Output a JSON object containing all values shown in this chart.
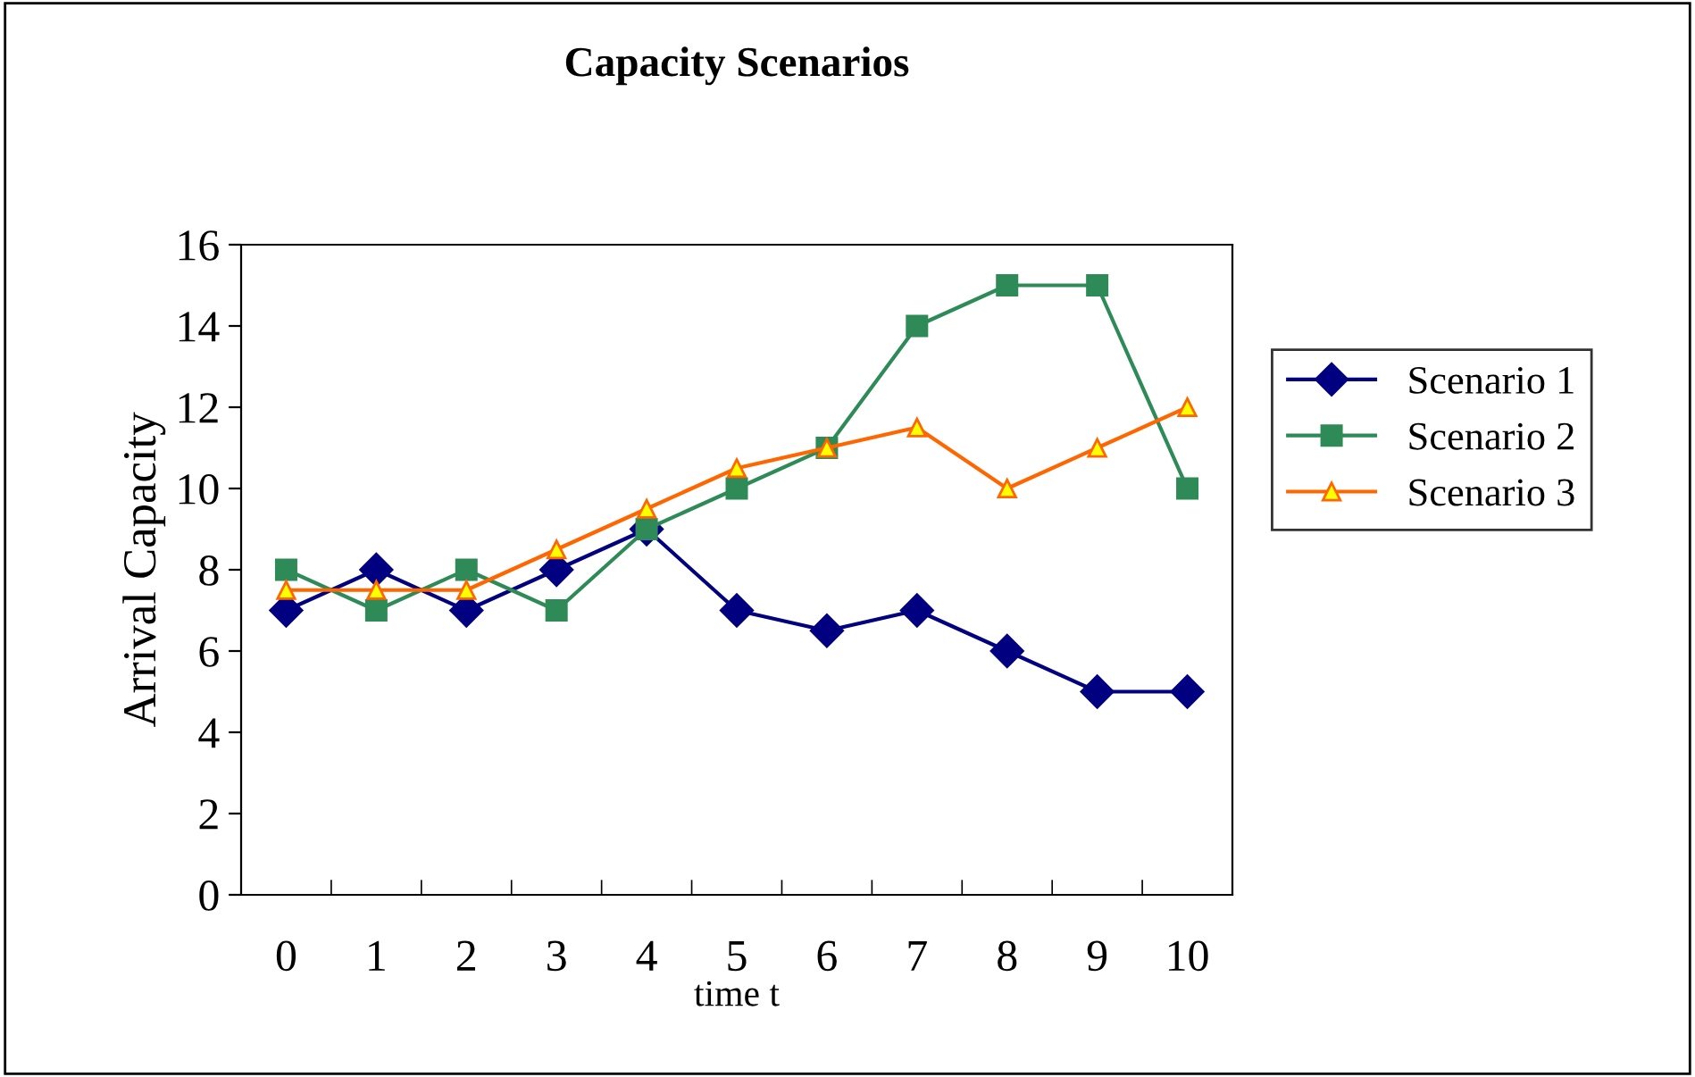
{
  "chart_data": {
    "type": "line",
    "title": "Capacity Scenarios",
    "xlabel": "time t",
    "ylabel": "Arrival Capacity",
    "categories": [
      "0",
      "1",
      "2",
      "3",
      "4",
      "5",
      "6",
      "7",
      "8",
      "9",
      "10"
    ],
    "series": [
      {
        "name": "Scenario 1",
        "color": "#000080",
        "marker": "diamond",
        "values": [
          7,
          8,
          7,
          8,
          9,
          7,
          6.5,
          7,
          6,
          5,
          5
        ]
      },
      {
        "name": "Scenario 2",
        "color": "#2e8b57",
        "marker": "square",
        "values": [
          8,
          7,
          8,
          7,
          9,
          10,
          11,
          14,
          15,
          15,
          10
        ]
      },
      {
        "name": "Scenario 3",
        "color": "#ff6600",
        "marker": "triangle",
        "values": [
          7.5,
          7.5,
          7.5,
          8.5,
          9.5,
          10.5,
          11,
          11.5,
          10,
          11,
          12
        ]
      }
    ],
    "ylim": [
      0,
      16
    ],
    "yticks": [
      0,
      2,
      4,
      6,
      8,
      10,
      12,
      14,
      16
    ],
    "grid": false,
    "legend": "right",
    "line_style": "solid"
  }
}
